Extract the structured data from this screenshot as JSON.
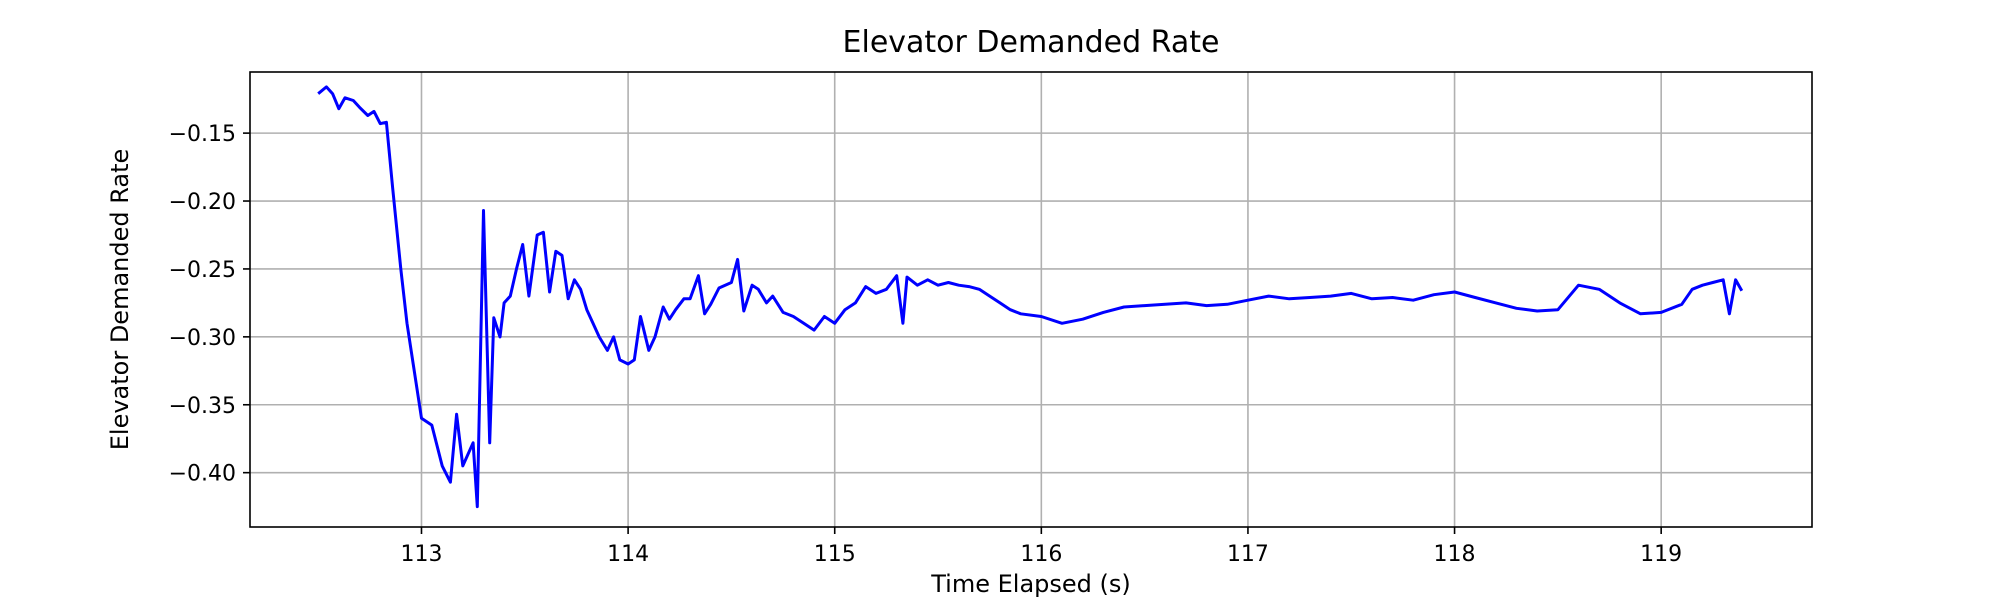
{
  "chart_data": {
    "type": "line",
    "title": "Elevator Demanded Rate",
    "xlabel": "Time Elapsed (s)",
    "ylabel": "Elevator Demanded Rate",
    "xlim": [
      112.17,
      119.73
    ],
    "ylim": [
      -0.44,
      -0.105
    ],
    "xticks": [
      113,
      114,
      115,
      116,
      117,
      118,
      119
    ],
    "xtick_labels": [
      "113",
      "114",
      "115",
      "116",
      "117",
      "118",
      "119"
    ],
    "yticks": [
      -0.4,
      -0.35,
      -0.3,
      -0.25,
      -0.2,
      -0.15
    ],
    "ytick_labels": [
      "−0.40",
      "−0.35",
      "−0.30",
      "−0.25",
      "−0.20",
      "−0.15"
    ],
    "grid": true,
    "series_color": "#0000ff",
    "grid_color": "#b0b0b0",
    "series": [
      {
        "x": [
          112.5,
          112.54,
          112.57,
          112.6,
          112.63,
          112.67,
          112.7,
          112.74,
          112.77,
          112.8,
          112.83,
          112.86,
          112.9,
          112.93,
          112.96,
          113.0,
          113.05,
          113.1,
          113.14,
          113.17,
          113.2,
          113.25,
          113.27,
          113.3,
          113.33,
          113.35,
          113.38,
          113.4,
          113.43,
          113.46,
          113.49,
          113.52,
          113.56,
          113.59,
          113.62,
          113.65,
          113.68,
          113.71,
          113.74,
          113.77,
          113.8,
          113.83,
          113.86,
          113.9,
          113.93,
          113.96,
          114.0,
          114.03,
          114.06,
          114.1,
          114.13,
          114.17,
          114.2,
          114.23,
          114.27,
          114.3,
          114.34,
          114.37,
          114.4,
          114.44,
          114.47,
          114.5,
          114.53,
          114.56,
          114.6,
          114.63,
          114.67,
          114.7,
          114.75,
          114.8,
          114.85,
          114.9,
          114.95,
          115.0,
          115.05,
          115.1,
          115.15,
          115.2,
          115.25,
          115.3,
          115.33,
          115.35,
          115.4,
          115.45,
          115.5,
          115.55,
          115.6,
          115.65,
          115.7,
          115.75,
          115.8,
          115.85,
          115.9,
          116.0,
          116.1,
          116.2,
          116.3,
          116.4,
          116.5,
          116.6,
          116.7,
          116.8,
          116.9,
          117.0,
          117.1,
          117.2,
          117.3,
          117.4,
          117.5,
          117.6,
          117.7,
          117.8,
          117.9,
          118.0,
          118.1,
          118.2,
          118.3,
          118.4,
          118.5,
          118.6,
          118.7,
          118.8,
          118.9,
          119.0,
          119.1,
          119.15,
          119.2,
          119.25,
          119.3,
          119.33,
          119.36,
          119.39
        ],
        "y": [
          -0.121,
          -0.116,
          -0.121,
          -0.132,
          -0.124,
          -0.126,
          -0.131,
          -0.137,
          -0.134,
          -0.143,
          -0.142,
          -0.19,
          -0.25,
          -0.29,
          -0.32,
          -0.36,
          -0.365,
          -0.395,
          -0.407,
          -0.357,
          -0.395,
          -0.378,
          -0.425,
          -0.207,
          -0.378,
          -0.286,
          -0.3,
          -0.275,
          -0.27,
          -0.25,
          -0.232,
          -0.27,
          -0.225,
          -0.223,
          -0.267,
          -0.237,
          -0.24,
          -0.272,
          -0.258,
          -0.265,
          -0.28,
          -0.29,
          -0.3,
          -0.31,
          -0.3,
          -0.317,
          -0.32,
          -0.317,
          -0.285,
          -0.31,
          -0.3,
          -0.278,
          -0.287,
          -0.28,
          -0.272,
          -0.272,
          -0.255,
          -0.283,
          -0.276,
          -0.264,
          -0.262,
          -0.26,
          -0.243,
          -0.281,
          -0.262,
          -0.265,
          -0.275,
          -0.27,
          -0.282,
          -0.285,
          -0.29,
          -0.295,
          -0.285,
          -0.29,
          -0.28,
          -0.275,
          -0.263,
          -0.268,
          -0.265,
          -0.255,
          -0.29,
          -0.256,
          -0.262,
          -0.258,
          -0.262,
          -0.26,
          -0.262,
          -0.263,
          -0.265,
          -0.27,
          -0.275,
          -0.28,
          -0.283,
          -0.285,
          -0.29,
          -0.287,
          -0.282,
          -0.278,
          -0.277,
          -0.276,
          -0.275,
          -0.277,
          -0.276,
          -0.273,
          -0.27,
          -0.272,
          -0.271,
          -0.27,
          -0.268,
          -0.272,
          -0.271,
          -0.273,
          -0.269,
          -0.267,
          -0.271,
          -0.275,
          -0.279,
          -0.281,
          -0.28,
          -0.262,
          -0.265,
          -0.275,
          -0.283,
          -0.282,
          -0.276,
          -0.265,
          -0.262,
          -0.26,
          -0.258,
          -0.283,
          -0.258,
          -0.266
        ]
      }
    ]
  }
}
